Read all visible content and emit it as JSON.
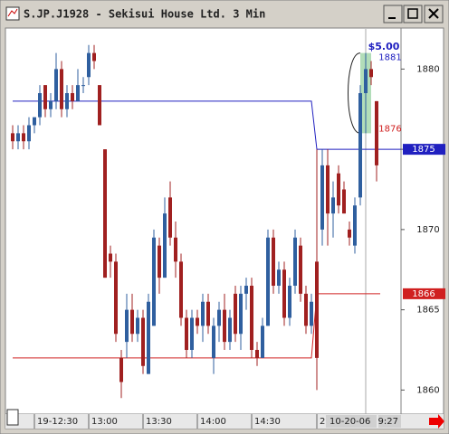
{
  "window_title": "S.JP.J1928 - Sekisui House Ltd. 3 Min",
  "chart_data": {
    "type": "candlestick",
    "categories": [
      null,
      null,
      null,
      null,
      "19-12:30",
      null,
      null,
      null,
      null,
      null,
      null,
      null,
      null,
      null,
      "13:00",
      null,
      null,
      null,
      null,
      null,
      null,
      null,
      null,
      null,
      "13:30",
      null,
      null,
      null,
      null,
      null,
      null,
      null,
      null,
      null,
      "14:00",
      null,
      null,
      null,
      null,
      null,
      null,
      null,
      null,
      null,
      "14:30",
      null,
      null,
      null,
      null,
      null,
      null,
      null,
      null,
      null,
      null,
      null,
      "2",
      null,
      null,
      null,
      null,
      null,
      null,
      null,
      null,
      null,
      null,
      null
    ],
    "open": [
      1876,
      1875.5,
      1876,
      1875.5,
      1876.5,
      1877,
      1879,
      1877.5,
      1878,
      1880,
      1877.5,
      1878.5,
      1878,
      1879,
      1879.5,
      1881,
      1879,
      1875,
      1868.5,
      1868,
      1862,
      1863,
      1865,
      1863.5,
      1864.5,
      1861,
      1864,
      1869,
      1867,
      1872,
      1869.5,
      1868,
      1864.5,
      1862.5,
      1864.5,
      1864,
      1865.5,
      1862,
      1864,
      1865,
      1863,
      1866,
      1863.5,
      1866,
      1866.5,
      1862.5,
      1862,
      1864,
      1869.5,
      1866.5,
      1867.5,
      1864.5,
      1866.5,
      1869,
      1866,
      1864,
      1868,
      1870,
      1874,
      1871,
      1873.5,
      1872.5,
      1870,
      1869,
      1872,
      1878.5,
      1880,
      1878
    ],
    "high": [
      1876.5,
      1876.5,
      1876.5,
      1877,
      1877,
      1879,
      1879,
      1878.5,
      1881,
      1880.5,
      1879,
      1879,
      1880,
      1879.5,
      1881.5,
      1881.5,
      1879,
      1875,
      1869,
      1868.5,
      1862.5,
      1866,
      1866,
      1865,
      1865,
      1866,
      1870,
      1869.5,
      1872,
      1873,
      1870.5,
      1868.5,
      1865,
      1865,
      1865,
      1866,
      1866,
      1864.5,
      1865.5,
      1866,
      1865,
      1866.5,
      1866.5,
      1867,
      1867,
      1863,
      1864.5,
      1870,
      1870,
      1868,
      1868,
      1867,
      1870,
      1869.5,
      1866.5,
      1866,
      1875,
      1875,
      1875,
      1873,
      1874,
      1873,
      1870.5,
      1872,
      1879,
      1881,
      1880.5,
      1878
    ],
    "low": [
      1875,
      1875,
      1875,
      1875,
      1876,
      1876.5,
      1877,
      1877,
      1877.5,
      1877,
      1877,
      1877.5,
      1878,
      1878.5,
      1879,
      1880,
      1876.5,
      1867,
      1867,
      1863,
      1859.5,
      1862,
      1863,
      1863,
      1861,
      1861,
      1864,
      1866,
      1867,
      1869,
      1867,
      1864,
      1862,
      1862,
      1863.5,
      1863,
      1863.5,
      1861,
      1863,
      1862.5,
      1862.5,
      1863,
      1862.5,
      1865,
      1862,
      1861.5,
      1862,
      1864,
      1866,
      1866,
      1864,
      1864,
      1866,
      1865.5,
      1863.5,
      1863.5,
      1860,
      1869,
      1869,
      1869.5,
      1871,
      1871,
      1869,
      1868.5,
      1871.5,
      1876,
      1879,
      1873
    ],
    "close": [
      1875.5,
      1876,
      1875.5,
      1876.5,
      1877,
      1878.5,
      1877.5,
      1878,
      1880,
      1877.5,
      1878.5,
      1878,
      1879,
      1879,
      1881,
      1880.5,
      1876.5,
      1867,
      1868,
      1863.5,
      1860.5,
      1865,
      1863.5,
      1864.5,
      1861.5,
      1865.5,
      1869.5,
      1867,
      1871,
      1869.5,
      1868,
      1864.5,
      1862.5,
      1864.5,
      1864,
      1865.5,
      1864,
      1864,
      1865,
      1863,
      1864.5,
      1863.5,
      1866,
      1866.5,
      1862.5,
      1862,
      1864,
      1869.5,
      1866.5,
      1867.5,
      1864.5,
      1866.5,
      1869.5,
      1866,
      1864,
      1865.5,
      1862,
      1874,
      1871,
      1872,
      1871.5,
      1871,
      1869.5,
      1871.5,
      1878.5,
      1880,
      1879.5,
      1874
    ],
    "up_color": "#2f5f9f",
    "down_color": "#a02020",
    "ylim": [
      1858.5,
      1882.5
    ],
    "yticks": [
      1860,
      1865,
      1870,
      1875,
      1880
    ],
    "reference_lines": [
      {
        "color": "#2020c0",
        "before": 1878,
        "after": 1875
      },
      {
        "color": "#d02020",
        "before": 1862,
        "after": 1866
      }
    ],
    "range": {
      "label": "$5.00",
      "high": 1881,
      "low": 1876,
      "color": "#2020c0",
      "low_color": "#d02020"
    },
    "cursor_date": "10-20-06",
    "cursor_time": "9:27"
  }
}
